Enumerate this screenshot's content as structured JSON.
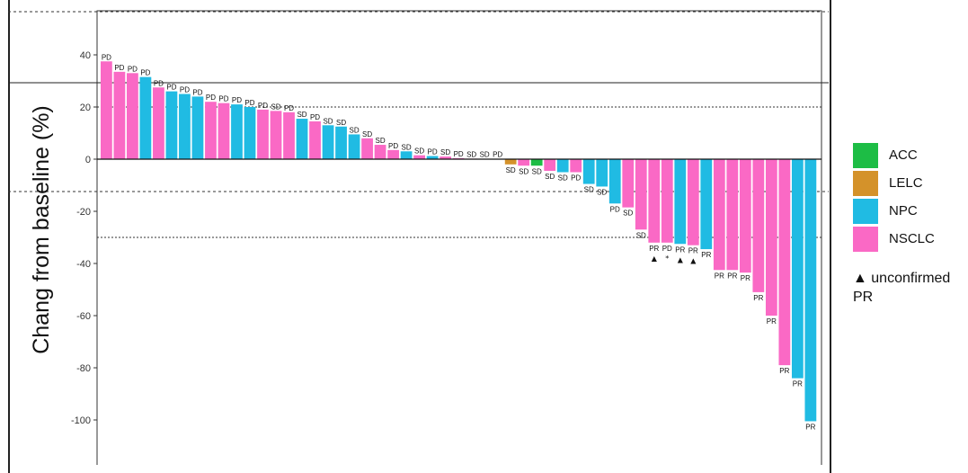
{
  "chart_data": {
    "type": "bar",
    "ylabel": "Chang from baseline (%)",
    "ylim": [
      -112,
      57
    ],
    "yticks": [
      40,
      20,
      0,
      -20,
      -40,
      -60,
      -80,
      -100
    ],
    "reference_lines": [
      20,
      -30
    ],
    "colors": {
      "ACC": "#1dbd45",
      "LELC": "#d4922a",
      "NPC": "#20bbe3",
      "NSCLC": "#fa69c5"
    },
    "legend": [
      "ACC",
      "LELC",
      "NPC",
      "NSCLC"
    ],
    "bars": [
      {
        "value": 37.5,
        "type": "NSCLC",
        "label": "PD",
        "marker": ""
      },
      {
        "value": 33.5,
        "type": "NSCLC",
        "label": "PD",
        "marker": ""
      },
      {
        "value": 33.0,
        "type": "NSCLC",
        "label": "PD",
        "marker": ""
      },
      {
        "value": 31.5,
        "type": "NPC",
        "label": "PD",
        "marker": ""
      },
      {
        "value": 27.5,
        "type": "NSCLC",
        "label": "PD",
        "marker": ""
      },
      {
        "value": 26.0,
        "type": "NPC",
        "label": "PD",
        "marker": ""
      },
      {
        "value": 25.0,
        "type": "NPC",
        "label": "PD",
        "marker": ""
      },
      {
        "value": 24.0,
        "type": "NPC",
        "label": "PD",
        "marker": ""
      },
      {
        "value": 22.0,
        "type": "NSCLC",
        "label": "PD",
        "marker": ""
      },
      {
        "value": 21.5,
        "type": "NSCLC",
        "label": "PD",
        "marker": ""
      },
      {
        "value": 21.0,
        "type": "NPC",
        "label": "PD",
        "marker": ""
      },
      {
        "value": 20.0,
        "type": "NPC",
        "label": "PD",
        "marker": ""
      },
      {
        "value": 19.0,
        "type": "NSCLC",
        "label": "PD",
        "marker": ""
      },
      {
        "value": 18.5,
        "type": "NSCLC",
        "label": "SD",
        "marker": ""
      },
      {
        "value": 18.0,
        "type": "NSCLC",
        "label": "PD",
        "marker": ""
      },
      {
        "value": 15.5,
        "type": "NPC",
        "label": "SD",
        "marker": ""
      },
      {
        "value": 14.5,
        "type": "NSCLC",
        "label": "PD",
        "marker": ""
      },
      {
        "value": 13.0,
        "type": "NPC",
        "label": "SD",
        "marker": ""
      },
      {
        "value": 12.5,
        "type": "NPC",
        "label": "SD",
        "marker": ""
      },
      {
        "value": 9.5,
        "type": "NPC",
        "label": "SD",
        "marker": ""
      },
      {
        "value": 8.0,
        "type": "NSCLC",
        "label": "SD",
        "marker": ""
      },
      {
        "value": 5.5,
        "type": "NSCLC",
        "label": "SD",
        "marker": ""
      },
      {
        "value": 3.5,
        "type": "NSCLC",
        "label": "PD",
        "marker": ""
      },
      {
        "value": 3.0,
        "type": "NPC",
        "label": "SD",
        "marker": ""
      },
      {
        "value": 1.5,
        "type": "NSCLC",
        "label": "SD",
        "marker": ""
      },
      {
        "value": 1.2,
        "type": "NPC",
        "label": "PD",
        "marker": ""
      },
      {
        "value": 1.0,
        "type": "NSCLC",
        "label": "SD",
        "marker": ""
      },
      {
        "value": 0.4,
        "type": "NSCLC",
        "label": "PD",
        "marker": ""
      },
      {
        "value": 0.2,
        "type": "NSCLC",
        "label": "SD",
        "marker": ""
      },
      {
        "value": 0.1,
        "type": "NSCLC",
        "label": "SD",
        "marker": ""
      },
      {
        "value": 0.1,
        "type": "NSCLC",
        "label": "PD",
        "marker": ""
      },
      {
        "value": -2.0,
        "type": "LELC",
        "label": "SD",
        "marker": ""
      },
      {
        "value": -2.5,
        "type": "NSCLC",
        "label": "SD",
        "marker": ""
      },
      {
        "value": -2.5,
        "type": "ACC",
        "label": "SD",
        "marker": ""
      },
      {
        "value": -4.5,
        "type": "NSCLC",
        "label": "SD",
        "marker": ""
      },
      {
        "value": -5.0,
        "type": "NPC",
        "label": "SD",
        "marker": ""
      },
      {
        "value": -5.0,
        "type": "NSCLC",
        "label": "PD",
        "marker": ""
      },
      {
        "value": -9.5,
        "type": "NPC",
        "label": "SD",
        "marker": ""
      },
      {
        "value": -10.5,
        "type": "NPC",
        "label": "SD",
        "marker": ""
      },
      {
        "value": -17.0,
        "type": "NPC",
        "label": "PD",
        "marker": ""
      },
      {
        "value": -18.5,
        "type": "NSCLC",
        "label": "SD",
        "marker": ""
      },
      {
        "value": -27.0,
        "type": "NSCLC",
        "label": "SD",
        "marker": ""
      },
      {
        "value": -32.0,
        "type": "NSCLC",
        "label": "PR",
        "marker": "▲"
      },
      {
        "value": -32.0,
        "type": "NSCLC",
        "label": "PD",
        "marker": "*"
      },
      {
        "value": -32.5,
        "type": "NPC",
        "label": "PR",
        "marker": "▲"
      },
      {
        "value": -33.0,
        "type": "NSCLC",
        "label": "PR",
        "marker": "▲"
      },
      {
        "value": -34.5,
        "type": "NPC",
        "label": "PR",
        "marker": ""
      },
      {
        "value": -42.5,
        "type": "NSCLC",
        "label": "PR",
        "marker": ""
      },
      {
        "value": -42.5,
        "type": "NSCLC",
        "label": "PR",
        "marker": ""
      },
      {
        "value": -43.5,
        "type": "NSCLC",
        "label": "PR",
        "marker": ""
      },
      {
        "value": -51.0,
        "type": "NSCLC",
        "label": "PR",
        "marker": ""
      },
      {
        "value": -60.0,
        "type": "NSCLC",
        "label": "PR",
        "marker": ""
      },
      {
        "value": -79.0,
        "type": "NSCLC",
        "label": "PR",
        "marker": ""
      },
      {
        "value": -84.0,
        "type": "NPC",
        "label": "PR",
        "marker": ""
      },
      {
        "value": -100.5,
        "type": "NPC",
        "label": "PR",
        "marker": ""
      }
    ]
  },
  "legend_items": [
    {
      "label": "ACC",
      "color": "#1dbd45"
    },
    {
      "label": "LELC",
      "color": "#d4922a"
    },
    {
      "label": "NPC",
      "color": "#20bbe3"
    },
    {
      "label": "NSCLC",
      "color": "#fa69c5"
    }
  ],
  "note": "▲ unconfirmed PR"
}
